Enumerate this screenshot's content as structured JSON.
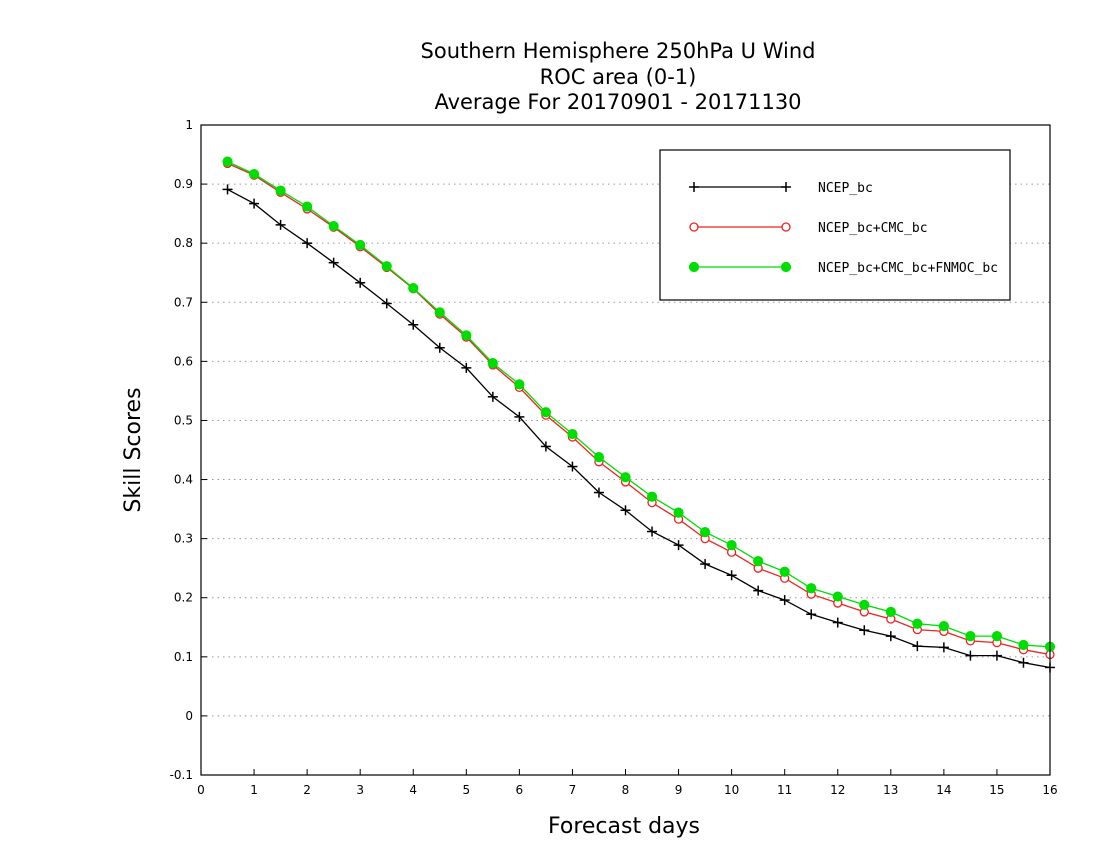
{
  "chart_data": {
    "type": "line",
    "title": [
      "Southern Hemisphere 250hPa U Wind",
      "ROC area (0-1)",
      "Average For 20170901 - 20171130"
    ],
    "xlabel": "Forecast days",
    "ylabel": "Skill Scores",
    "xlim": [
      0,
      16
    ],
    "ylim": [
      -0.1,
      1
    ],
    "xticks": [
      "0",
      "1",
      "2",
      "3",
      "4",
      "5",
      "6",
      "7",
      "8",
      "9",
      "10",
      "11",
      "12",
      "13",
      "14",
      "15",
      "16"
    ],
    "yticks": [
      "-0.1",
      "0",
      "0.1",
      "0.2",
      "0.3",
      "0.4",
      "0.5",
      "0.6",
      "0.7",
      "0.8",
      "0.9",
      "1"
    ],
    "grid": true,
    "grid_style": "dotted, horizontal",
    "legend_position": "top-right",
    "x": [
      0.5,
      1,
      1.5,
      2,
      2.5,
      3,
      3.5,
      4,
      4.5,
      5,
      5.5,
      6,
      6.5,
      7,
      7.5,
      8,
      8.5,
      9,
      9.5,
      10,
      10.5,
      11,
      11.5,
      12,
      12.5,
      13,
      13.5,
      14,
      14.5,
      15,
      15.5,
      16
    ],
    "series": [
      {
        "name": "NCEP_bc",
        "color": "#000000",
        "marker": "plus",
        "values": [
          0.891,
          0.867,
          0.831,
          0.8,
          0.767,
          0.733,
          0.698,
          0.662,
          0.623,
          0.589,
          0.54,
          0.506,
          0.456,
          0.422,
          0.378,
          0.348,
          0.312,
          0.289,
          0.257,
          0.238,
          0.212,
          0.196,
          0.172,
          0.158,
          0.145,
          0.135,
          0.118,
          0.116,
          0.102,
          0.102,
          0.09,
          0.082
        ]
      },
      {
        "name": "NCEP_bc+CMC_bc",
        "color": "#ee2222",
        "marker": "open-circle",
        "values": [
          0.935,
          0.915,
          0.886,
          0.858,
          0.827,
          0.794,
          0.759,
          0.723,
          0.68,
          0.641,
          0.594,
          0.556,
          0.509,
          0.472,
          0.43,
          0.396,
          0.361,
          0.333,
          0.3,
          0.277,
          0.25,
          0.233,
          0.206,
          0.191,
          0.176,
          0.164,
          0.146,
          0.143,
          0.127,
          0.124,
          0.112,
          0.104
        ]
      },
      {
        "name": "NCEP_bc+CMC_bc+FNMOC_bc",
        "color": "#00dd00",
        "marker": "filled-circle",
        "values": [
          0.938,
          0.917,
          0.889,
          0.862,
          0.829,
          0.797,
          0.761,
          0.724,
          0.683,
          0.644,
          0.597,
          0.561,
          0.514,
          0.477,
          0.438,
          0.404,
          0.371,
          0.344,
          0.311,
          0.289,
          0.262,
          0.244,
          0.216,
          0.202,
          0.188,
          0.176,
          0.156,
          0.152,
          0.135,
          0.135,
          0.12,
          0.117
        ]
      }
    ]
  }
}
